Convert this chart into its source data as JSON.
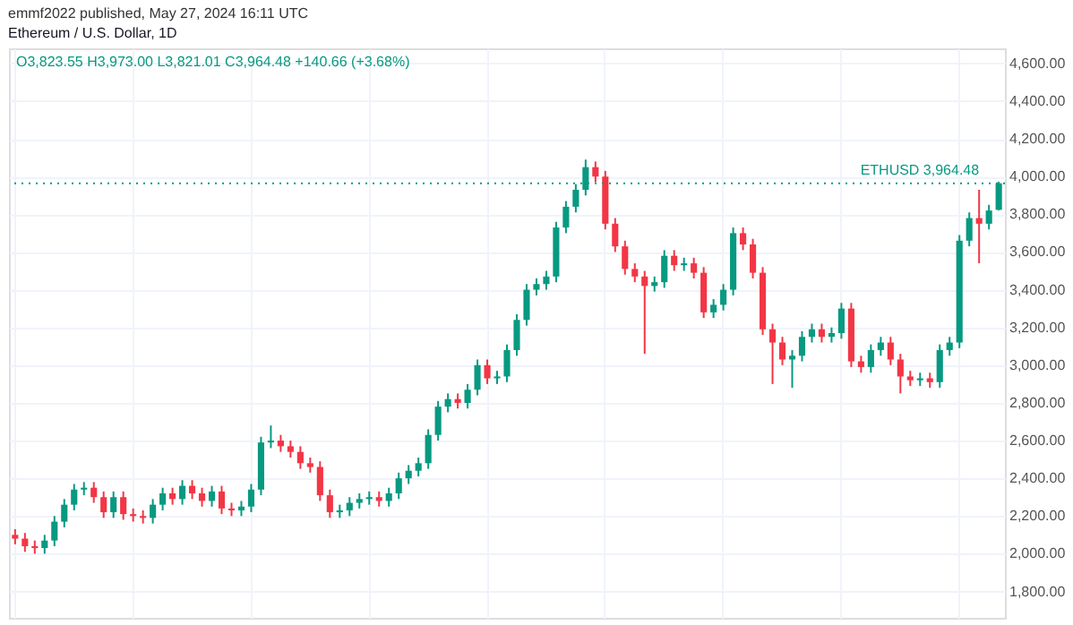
{
  "chart_data": {
    "type": "candlestick",
    "title": "Ethereum / U.S. Dollar, 1D",
    "annotations": [
      "emmf2022 published, May 27, 2024 16:11 UTC",
      "O3,823.55 H3,973.00 L3,821.01 C3,964.48 +140.66 (+3.68%)"
    ],
    "categories": [
      null,
      null,
      null,
      null,
      null,
      null,
      null,
      null,
      null,
      null,
      null,
      null,
      null,
      null,
      null,
      null,
      null,
      null,
      null,
      null,
      null,
      null,
      null,
      null,
      null,
      null,
      null,
      null,
      null,
      null,
      null,
      null,
      null,
      null,
      null,
      null,
      null,
      null,
      null,
      null,
      null,
      null,
      null,
      null,
      null,
      null,
      null,
      null,
      null,
      null,
      null,
      null,
      null,
      null,
      null,
      null,
      null,
      null,
      null,
      null,
      null,
      null,
      null,
      null,
      null,
      null,
      null,
      null,
      null,
      null,
      null,
      null,
      null,
      null,
      null,
      null,
      null,
      null,
      null,
      null,
      null,
      null,
      null,
      null,
      null,
      null,
      null,
      null,
      null,
      null,
      null,
      null,
      null,
      null,
      null,
      null,
      null,
      null,
      null,
      null,
      null
    ],
    "ohlc": [
      [
        2100,
        2130,
        2050,
        2080
      ],
      [
        2080,
        2110,
        2010,
        2040
      ],
      [
        2040,
        2070,
        2000,
        2030
      ],
      [
        2030,
        2100,
        2000,
        2070
      ],
      [
        2070,
        2200,
        2040,
        2170
      ],
      [
        2170,
        2290,
        2140,
        2260
      ],
      [
        2260,
        2370,
        2230,
        2340
      ],
      [
        2340,
        2380,
        2310,
        2350
      ],
      [
        2350,
        2380,
        2270,
        2300
      ],
      [
        2300,
        2330,
        2190,
        2220
      ],
      [
        2220,
        2330,
        2190,
        2300
      ],
      [
        2300,
        2330,
        2180,
        2210
      ],
      [
        2210,
        2240,
        2170,
        2200
      ],
      [
        2200,
        2230,
        2160,
        2190
      ],
      [
        2190,
        2290,
        2160,
        2260
      ],
      [
        2260,
        2350,
        2230,
        2320
      ],
      [
        2320,
        2350,
        2260,
        2290
      ],
      [
        2290,
        2390,
        2260,
        2360
      ],
      [
        2360,
        2390,
        2290,
        2320
      ],
      [
        2320,
        2350,
        2250,
        2280
      ],
      [
        2280,
        2360,
        2250,
        2330
      ],
      [
        2330,
        2360,
        2210,
        2240
      ],
      [
        2240,
        2270,
        2200,
        2230
      ],
      [
        2230,
        2280,
        2200,
        2250
      ],
      [
        2250,
        2370,
        2220,
        2340
      ],
      [
        2340,
        2620,
        2310,
        2590
      ],
      [
        2590,
        2680,
        2560,
        2600
      ],
      [
        2600,
        2630,
        2540,
        2570
      ],
      [
        2570,
        2600,
        2510,
        2540
      ],
      [
        2540,
        2570,
        2450,
        2480
      ],
      [
        2480,
        2510,
        2430,
        2460
      ],
      [
        2460,
        2490,
        2280,
        2310
      ],
      [
        2310,
        2340,
        2190,
        2220
      ],
      [
        2220,
        2260,
        2190,
        2230
      ],
      [
        2230,
        2300,
        2200,
        2270
      ],
      [
        2270,
        2320,
        2240,
        2290
      ],
      [
        2290,
        2330,
        2260,
        2300
      ],
      [
        2300,
        2330,
        2250,
        2280
      ],
      [
        2280,
        2350,
        2250,
        2320
      ],
      [
        2320,
        2430,
        2290,
        2400
      ],
      [
        2400,
        2470,
        2370,
        2440
      ],
      [
        2440,
        2510,
        2410,
        2480
      ],
      [
        2480,
        2660,
        2450,
        2630
      ],
      [
        2630,
        2810,
        2600,
        2780
      ],
      [
        2780,
        2850,
        2750,
        2820
      ],
      [
        2820,
        2850,
        2770,
        2800
      ],
      [
        2800,
        2900,
        2770,
        2870
      ],
      [
        2870,
        3030,
        2840,
        3000
      ],
      [
        3000,
        3030,
        2900,
        2930
      ],
      [
        2930,
        2970,
        2900,
        2940
      ],
      [
        2940,
        3110,
        2910,
        3080
      ],
      [
        3080,
        3270,
        3050,
        3240
      ],
      [
        3240,
        3430,
        3210,
        3400
      ],
      [
        3400,
        3460,
        3370,
        3430
      ],
      [
        3430,
        3500,
        3400,
        3470
      ],
      [
        3470,
        3760,
        3440,
        3730
      ],
      [
        3730,
        3870,
        3700,
        3840
      ],
      [
        3840,
        3960,
        3810,
        3930
      ],
      [
        3930,
        4090,
        3900,
        4050
      ],
      [
        4050,
        4080,
        3970,
        4000
      ],
      [
        4000,
        4030,
        3720,
        3750
      ],
      [
        3750,
        3780,
        3600,
        3630
      ],
      [
        3630,
        3660,
        3480,
        3510
      ],
      [
        3510,
        3540,
        3440,
        3470
      ],
      [
        3470,
        3500,
        3060,
        3420
      ],
      [
        3420,
        3470,
        3390,
        3440
      ],
      [
        3440,
        3610,
        3410,
        3580
      ],
      [
        3580,
        3610,
        3500,
        3530
      ],
      [
        3530,
        3570,
        3500,
        3540
      ],
      [
        3540,
        3570,
        3460,
        3490
      ],
      [
        3490,
        3520,
        3250,
        3280
      ],
      [
        3280,
        3350,
        3250,
        3320
      ],
      [
        3320,
        3430,
        3290,
        3400
      ],
      [
        3400,
        3730,
        3370,
        3700
      ],
      [
        3700,
        3730,
        3610,
        3640
      ],
      [
        3640,
        3670,
        3460,
        3490
      ],
      [
        3490,
        3520,
        3160,
        3190
      ],
      [
        3190,
        3220,
        2900,
        3120
      ],
      [
        3120,
        3150,
        3000,
        3030
      ],
      [
        3030,
        3080,
        2880,
        3050
      ],
      [
        3050,
        3180,
        3020,
        3150
      ],
      [
        3150,
        3220,
        3120,
        3190
      ],
      [
        3190,
        3220,
        3120,
        3150
      ],
      [
        3150,
        3200,
        3120,
        3170
      ],
      [
        3170,
        3330,
        3140,
        3300
      ],
      [
        3300,
        3330,
        2990,
        3020
      ],
      [
        3020,
        3050,
        2960,
        2990
      ],
      [
        2990,
        3110,
        2960,
        3080
      ],
      [
        3080,
        3150,
        3050,
        3120
      ],
      [
        3120,
        3150,
        3000,
        3030
      ],
      [
        3030,
        3060,
        2850,
        2940
      ],
      [
        2940,
        2970,
        2890,
        2920
      ],
      [
        2920,
        2960,
        2890,
        2930
      ],
      [
        2930,
        2960,
        2880,
        2910
      ],
      [
        2910,
        3110,
        2880,
        3080
      ],
      [
        3080,
        3150,
        3050,
        3120
      ],
      [
        3120,
        3690,
        3090,
        3660
      ],
      [
        3660,
        3810,
        3630,
        3780
      ],
      [
        3780,
        3930,
        3540,
        3750
      ],
      [
        3750,
        3850,
        3720,
        3820
      ],
      [
        3823.55,
        3973.0,
        3821.01,
        3964.48
      ]
    ],
    "ylim": [
      1660,
      4680
    ],
    "yticks": [
      {
        "value": 1800,
        "label": "1,800.00"
      },
      {
        "value": 2000,
        "label": "2,000.00"
      },
      {
        "value": 2200,
        "label": "2,200.00"
      },
      {
        "value": 2400,
        "label": "2,400.00"
      },
      {
        "value": 2600,
        "label": "2,600.00"
      },
      {
        "value": 2800,
        "label": "2,800.00"
      },
      {
        "value": 3000,
        "label": "3,000.00"
      },
      {
        "value": 3200,
        "label": "3,200.00"
      },
      {
        "value": 3400,
        "label": "3,400.00"
      },
      {
        "value": 3600,
        "label": "3,600.00"
      },
      {
        "value": 3800,
        "label": "3,800.00"
      },
      {
        "value": 4000,
        "label": "4,000.00"
      },
      {
        "value": 4200,
        "label": "4,200.00"
      },
      {
        "value": 4400,
        "label": "4,400.00"
      },
      {
        "value": 4600,
        "label": "4,600.00"
      }
    ],
    "ref_lines": [
      {
        "axis": "y",
        "value": 3964.48,
        "label": "ETHUSD 3,964.48",
        "color": "#089981",
        "line_style": "dotted"
      }
    ],
    "grid": true,
    "tick_labels": "y"
  }
}
